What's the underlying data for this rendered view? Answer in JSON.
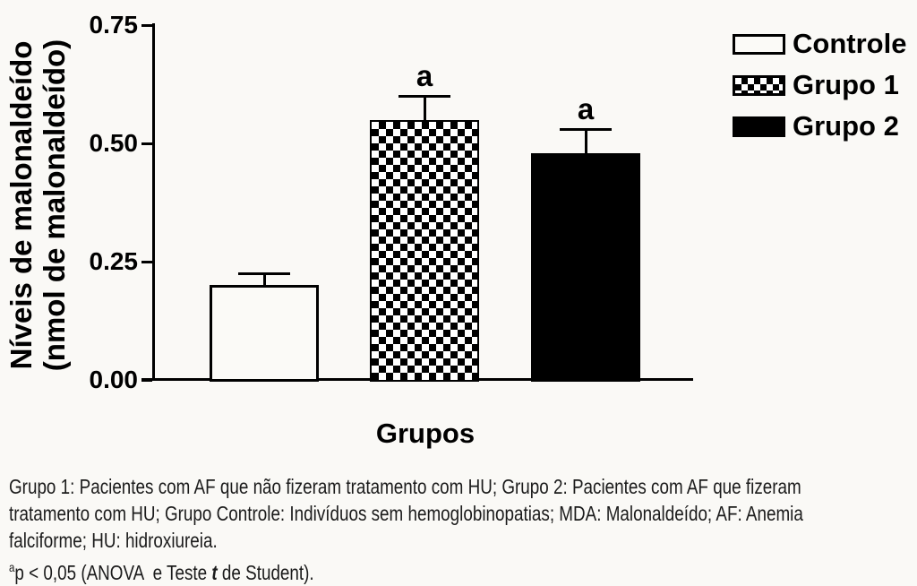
{
  "figure": {
    "background": "#faf9f6",
    "ink": "#000000"
  },
  "chart_data": {
    "type": "bar",
    "title": "",
    "xlabel": "Grupos",
    "ylabel_lines": [
      "Níveis de malonaldeído",
      "(nmol de malonaldeído)"
    ],
    "categories": [
      "Controle",
      "Grupo 1",
      "Grupo 2"
    ],
    "values": [
      0.2,
      0.55,
      0.48
    ],
    "errors": [
      0.025,
      0.05,
      0.05
    ],
    "significance": [
      "",
      "a",
      "a"
    ],
    "ylim": [
      0,
      0.75
    ],
    "yticks": [
      0,
      0.25,
      0.5,
      0.75
    ],
    "ytick_labels": [
      "0.00",
      "0.25",
      "0.50",
      "0.75"
    ],
    "grid": false,
    "legend_position": "top-right",
    "legend": [
      {
        "label": "Controle",
        "pattern": "outline"
      },
      {
        "label": "Grupo 1",
        "pattern": "checker"
      },
      {
        "label": "Grupo 2",
        "pattern": "solid"
      }
    ]
  },
  "caption": {
    "lines": [
      "Grupo 1: Pacientes com AF que não fizeram tratamento com HU; Grupo 2: Pacientes com AF que fizeram",
      "tratamento com HU; Grupo Controle: Indivíduos sem hemoglobinopatias; MDA: Malonaldeído; AF: Anemia",
      "falciforme; HU: hidroxiureia."
    ],
    "footnote": {
      "sup": "a",
      "pre": "p < 0,05 (ANOVA  e Teste ",
      "stat_symbol": "t",
      "post": " de Student)."
    }
  }
}
